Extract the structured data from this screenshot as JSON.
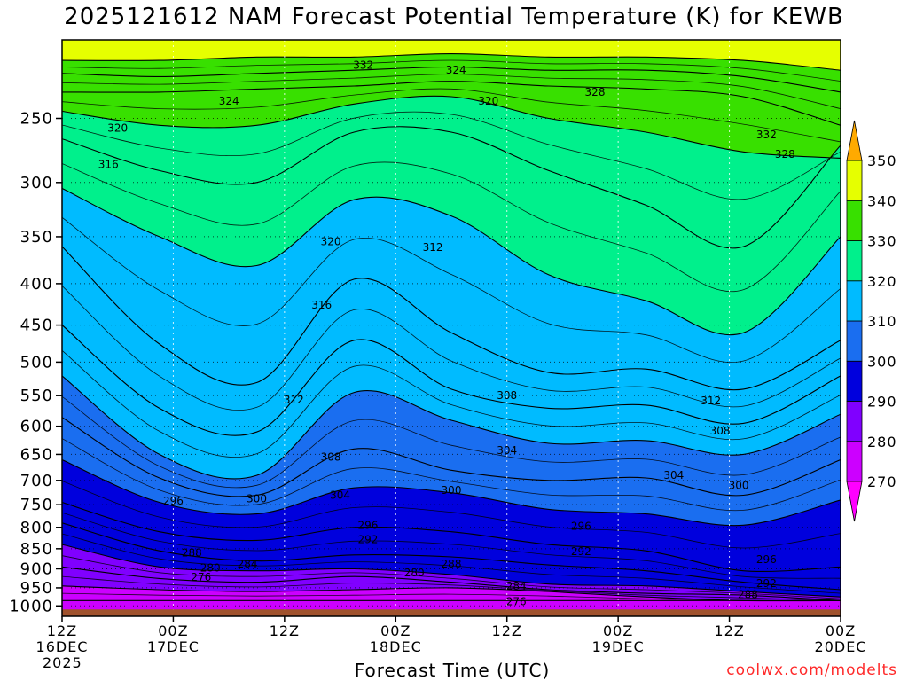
{
  "chart_data": {
    "type": "heatmap",
    "title": "2025121612 NAM Forecast Potential Temperature (K) for KEWB",
    "xlabel": "Forecast Time (UTC)",
    "ylabel": "",
    "ylim": [
      1030,
      200
    ],
    "xlim": [
      0,
      84
    ],
    "x_ticks": [
      {
        "x": 0,
        "lines": [
          "12Z",
          "16DEC",
          "2025"
        ]
      },
      {
        "x": 12,
        "lines": [
          "00Z",
          "17DEC"
        ]
      },
      {
        "x": 24,
        "lines": [
          "12Z"
        ]
      },
      {
        "x": 36,
        "lines": [
          "00Z",
          "18DEC"
        ]
      },
      {
        "x": 48,
        "lines": [
          "12Z"
        ]
      },
      {
        "x": 60,
        "lines": [
          "00Z",
          "19DEC"
        ]
      },
      {
        "x": 72,
        "lines": [
          "12Z"
        ]
      },
      {
        "x": 84,
        "lines": [
          "00Z",
          "20DEC"
        ]
      }
    ],
    "y_ticks": [
      250,
      300,
      350,
      400,
      450,
      500,
      550,
      600,
      650,
      700,
      750,
      800,
      850,
      900,
      950,
      1000
    ],
    "grid": true,
    "colorbar": {
      "levels": [
        270,
        280,
        290,
        300,
        310,
        320,
        330,
        340,
        350
      ],
      "colors": [
        "#ff00ff",
        "#cc00ff",
        "#8000ff",
        "#0000dd",
        "#1a6ef0",
        "#00bbff",
        "#00f08c",
        "#38e000",
        "#e6ff00",
        "#ffaa00"
      ]
    },
    "isentropes": [
      {
        "theta": 276,
        "p": [
          985,
          985,
          985,
          985,
          985,
          985,
          985,
          985,
          985
        ]
      },
      {
        "theta": 280,
        "p": [
          945,
          955,
          960,
          955,
          950,
          960,
          975,
          985,
          985
        ]
      },
      {
        "theta": 284,
        "p": [
          895,
          925,
          935,
          920,
          935,
          955,
          965,
          970,
          985
        ]
      },
      {
        "theta": 288,
        "p": [
          840,
          895,
          905,
          900,
          915,
          940,
          945,
          960,
          975
        ]
      },
      {
        "theta": 292,
        "p": [
          790,
          855,
          880,
          865,
          870,
          890,
          905,
          935,
          955
        ]
      },
      {
        "theta": 296,
        "p": [
          745,
          810,
          830,
          800,
          810,
          840,
          855,
          905,
          895
        ]
      },
      {
        "theta": 300,
        "p": [
          660,
          745,
          770,
          715,
          725,
          760,
          770,
          795,
          740
        ]
      },
      {
        "theta": 304,
        "p": [
          585,
          695,
          730,
          640,
          680,
          700,
          695,
          730,
          660
        ]
      },
      {
        "theta": 308,
        "p": [
          520,
          650,
          690,
          545,
          590,
          630,
          625,
          650,
          580
        ]
      },
      {
        "theta": 312,
        "p": [
          450,
          570,
          610,
          470,
          540,
          570,
          565,
          595,
          520
        ]
      },
      {
        "theta": 316,
        "p": [
          360,
          475,
          530,
          395,
          460,
          515,
          510,
          540,
          470
        ]
      },
      {
        "theta": 320,
        "p": [
          305,
          350,
          380,
          315,
          330,
          390,
          420,
          460,
          350
        ]
      },
      {
        "theta": 324,
        "p": [
          265,
          290,
          300,
          260,
          260,
          290,
          320,
          360,
          270
        ]
      },
      {
        "theta": 328,
        "p": [
          245,
          255,
          255,
          240,
          235,
          250,
          260,
          275,
          280
        ]
      },
      {
        "theta": 332,
        "p": [
          232,
          232,
          230,
          228,
          225,
          228,
          230,
          235,
          255
        ]
      },
      {
        "theta": 336,
        "p": [
          220,
          222,
          220,
          218,
          216,
          218,
          218,
          222,
          232
        ]
      },
      {
        "theta": 340,
        "p": [
          212,
          212,
          210,
          210,
          208,
          210,
          210,
          212,
          218
        ]
      }
    ],
    "contour_labels": [
      {
        "text": "332",
        "x": 32.5,
        "p": 215
      },
      {
        "text": "324",
        "x": 42.5,
        "p": 218
      },
      {
        "text": "328",
        "x": 57.5,
        "p": 232
      },
      {
        "text": "332",
        "x": 76,
        "p": 262
      },
      {
        "text": "328",
        "x": 78,
        "p": 277
      },
      {
        "text": "324",
        "x": 18,
        "p": 238
      },
      {
        "text": "320",
        "x": 6,
        "p": 257
      },
      {
        "text": "320",
        "x": 46,
        "p": 238
      },
      {
        "text": "316",
        "x": 5,
        "p": 285
      },
      {
        "text": "320",
        "x": 29,
        "p": 355
      },
      {
        "text": "312",
        "x": 40,
        "p": 361
      },
      {
        "text": "316",
        "x": 28,
        "p": 425
      },
      {
        "text": "312",
        "x": 25,
        "p": 557
      },
      {
        "text": "308",
        "x": 48,
        "p": 550
      },
      {
        "text": "312",
        "x": 70,
        "p": 558
      },
      {
        "text": "308",
        "x": 71,
        "p": 608
      },
      {
        "text": "304",
        "x": 48,
        "p": 643
      },
      {
        "text": "308",
        "x": 29,
        "p": 655
      },
      {
        "text": "304",
        "x": 66,
        "p": 690
      },
      {
        "text": "300",
        "x": 73,
        "p": 710
      },
      {
        "text": "304",
        "x": 30,
        "p": 730
      },
      {
        "text": "300",
        "x": 42,
        "p": 720
      },
      {
        "text": "296",
        "x": 12,
        "p": 742
      },
      {
        "text": "300",
        "x": 21,
        "p": 737
      },
      {
        "text": "296",
        "x": 33,
        "p": 795
      },
      {
        "text": "292",
        "x": 33,
        "p": 828
      },
      {
        "text": "296",
        "x": 56,
        "p": 797
      },
      {
        "text": "292",
        "x": 56,
        "p": 857
      },
      {
        "text": "288",
        "x": 14,
        "p": 860
      },
      {
        "text": "284",
        "x": 20,
        "p": 888
      },
      {
        "text": "280",
        "x": 16,
        "p": 898
      },
      {
        "text": "276",
        "x": 15,
        "p": 922
      },
      {
        "text": "288",
        "x": 42,
        "p": 888
      },
      {
        "text": "280",
        "x": 38,
        "p": 910
      },
      {
        "text": "284",
        "x": 49,
        "p": 945
      },
      {
        "text": "276",
        "x": 49,
        "p": 988
      },
      {
        "text": "296",
        "x": 76,
        "p": 877
      },
      {
        "text": "292",
        "x": 76,
        "p": 938
      },
      {
        "text": "288",
        "x": 74,
        "p": 968
      }
    ],
    "terrain_top_hpa": 1010
  },
  "footer": "coolwx.com/modelts"
}
